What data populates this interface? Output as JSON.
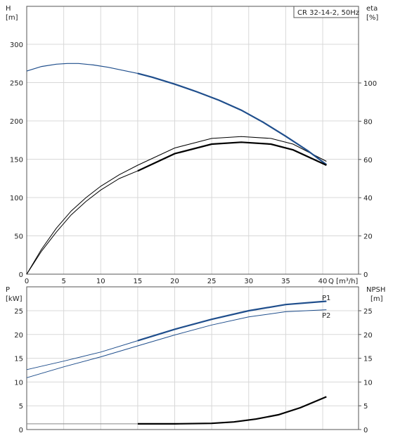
{
  "chart_data": [
    {
      "type": "line",
      "title": "CR 32-14-2, 50Hz",
      "xlabel": "Q [m³/h]",
      "ylabel_left": "H\n[m]",
      "ylabel_right": "eta\n[%]",
      "xlim": [
        0,
        42
      ],
      "ylim_left": [
        0,
        330
      ],
      "ylim_right": [
        0,
        132
      ],
      "x_ticks": [
        0,
        5,
        10,
        15,
        20,
        25,
        30,
        35,
        40
      ],
      "y_ticks_left": [
        0,
        50,
        100,
        150,
        200,
        250,
        300
      ],
      "y_ticks_right": [
        0,
        20,
        40,
        60,
        80,
        100
      ],
      "grid": true,
      "series": [
        {
          "axis": "left",
          "color": "#1f4e8c",
          "x": [
            0,
            2,
            4,
            5.5,
            7,
            9,
            11,
            13,
            15,
            17,
            20,
            23,
            26,
            29,
            32,
            35,
            38,
            40.5
          ],
          "values": [
            265,
            271,
            274,
            275,
            275,
            273,
            270,
            266,
            262,
            257,
            248,
            238,
            227,
            214,
            198,
            180,
            161,
            143
          ]
        },
        {
          "axis": "right",
          "color": "#000000",
          "x": [
            0,
            2,
            4,
            6,
            8,
            10,
            12.5,
            15,
            20,
            25,
            29,
            33,
            36,
            40.5
          ],
          "values": [
            0,
            13,
            24,
            33,
            40,
            46,
            52,
            57,
            66,
            71,
            72,
            71,
            68,
            59
          ]
        },
        {
          "axis": "right",
          "color": "#000000",
          "x": [
            0,
            2,
            4,
            6,
            8,
            10,
            12.5,
            15,
            20,
            25,
            29,
            33,
            36,
            40.5
          ],
          "values": [
            0,
            12,
            22,
            31,
            38,
            44,
            50,
            54,
            63,
            68,
            69,
            68,
            65,
            57
          ]
        }
      ]
    },
    {
      "type": "line",
      "ylabel_left": "P\n[kW]",
      "ylabel_right": "NPSH\n[m]",
      "xlim": [
        0,
        42
      ],
      "ylim_left": [
        0,
        29
      ],
      "ylim_right": [
        0,
        29
      ],
      "x_ticks": [
        0,
        5,
        10,
        15,
        20,
        25,
        30,
        35,
        40
      ],
      "y_ticks_left": [
        0,
        5,
        10,
        15,
        20,
        25
      ],
      "y_ticks_right": [
        0,
        5,
        10,
        15,
        20,
        25
      ],
      "grid": true,
      "series": [
        {
          "name": "P1",
          "axis": "left",
          "color": "#1f4e8c",
          "x": [
            0,
            5,
            10,
            15,
            20,
            25,
            30,
            35,
            40.5
          ],
          "values": [
            12.6,
            14.4,
            16.3,
            18.7,
            21.1,
            23.2,
            25.0,
            26.3,
            27.0
          ]
        },
        {
          "name": "P2",
          "axis": "left",
          "color": "#1f4e8c",
          "x": [
            0,
            5,
            10,
            15,
            20,
            25,
            30,
            35,
            40.5
          ],
          "values": [
            10.9,
            13.2,
            15.3,
            17.6,
            19.9,
            22.0,
            23.7,
            24.8,
            25.2
          ]
        },
        {
          "axis": "right",
          "color": "#000000",
          "x": [
            15,
            20,
            25,
            28,
            31,
            34,
            37,
            40.5
          ],
          "values": [
            1.2,
            1.2,
            1.3,
            1.6,
            2.2,
            3.1,
            4.6,
            6.9
          ]
        },
        {
          "axis": "left",
          "color": "#888888",
          "x": [
            0,
            15
          ],
          "values": [
            1.2,
            1.2
          ]
        }
      ]
    }
  ]
}
